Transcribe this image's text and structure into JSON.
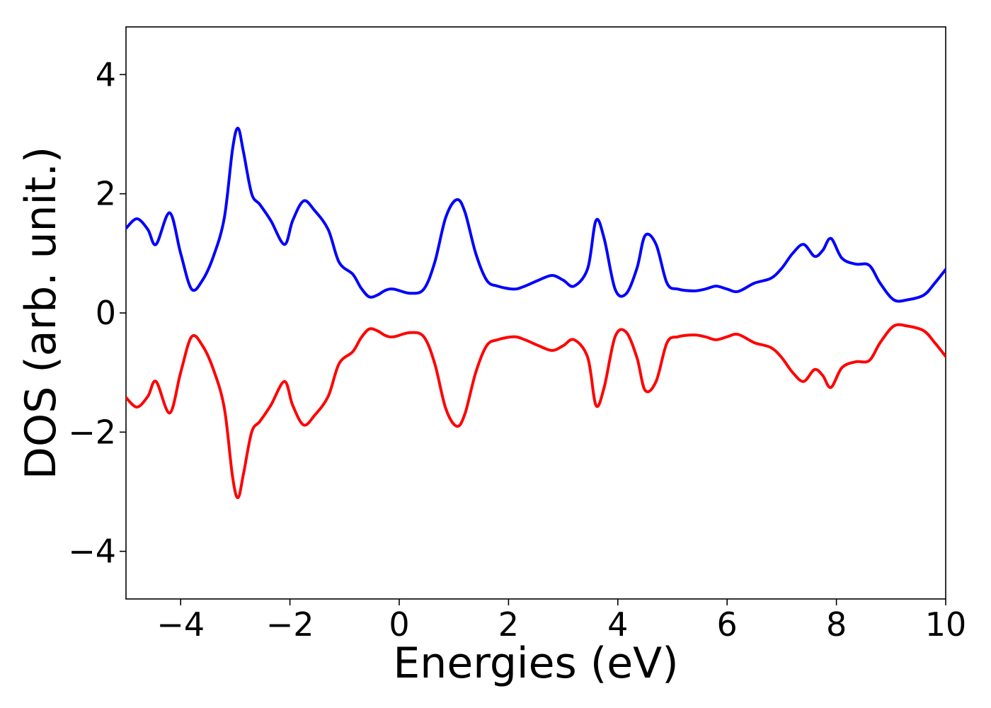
{
  "chart_data": {
    "type": "line",
    "title": "",
    "xlabel": "Energies (eV)",
    "ylabel": "DOS (arb. unit.)",
    "xlim": [
      -5,
      10
    ],
    "ylim": [
      -4.8,
      4.8
    ],
    "grid": false,
    "legend": "none",
    "x_ticks": [
      -4,
      -2,
      0,
      2,
      4,
      6,
      8,
      10
    ],
    "x_tick_labels": [
      "−4",
      "−2",
      "0",
      "2",
      "4",
      "6",
      "8",
      "10"
    ],
    "y_ticks": [
      -4,
      -2,
      0,
      2,
      4
    ],
    "y_tick_labels": [
      "−4",
      "−2",
      "0",
      "2",
      "4"
    ],
    "series": [
      {
        "color": "#0000ff",
        "x": [
          -5.0,
          -4.8,
          -4.6,
          -4.45,
          -4.2,
          -4.0,
          -3.8,
          -3.6,
          -3.4,
          -3.2,
          -3.05,
          -2.95,
          -2.85,
          -2.7,
          -2.55,
          -2.35,
          -2.1,
          -1.95,
          -1.75,
          -1.55,
          -1.3,
          -1.1,
          -0.85,
          -0.7,
          -0.55,
          -0.4,
          -0.25,
          -0.1,
          0.2,
          0.45,
          0.65,
          0.85,
          1.05,
          1.2,
          1.4,
          1.6,
          1.8,
          2.1,
          2.3,
          2.55,
          2.8,
          3.0,
          3.2,
          3.45,
          3.6,
          3.75,
          3.95,
          4.15,
          4.35,
          4.5,
          4.7,
          4.9,
          5.1,
          5.4,
          5.6,
          5.8,
          6.0,
          6.2,
          6.5,
          6.8,
          7.0,
          7.2,
          7.4,
          7.6,
          7.75,
          7.9,
          8.1,
          8.35,
          8.6,
          8.8,
          9.05,
          9.3,
          9.6,
          9.8,
          10.0
        ],
        "y": [
          1.42,
          1.58,
          1.4,
          1.15,
          1.68,
          1.0,
          0.4,
          0.55,
          0.95,
          1.6,
          2.75,
          3.1,
          2.7,
          2.0,
          1.82,
          1.55,
          1.15,
          1.55,
          1.88,
          1.72,
          1.4,
          0.85,
          0.65,
          0.42,
          0.27,
          0.3,
          0.38,
          0.4,
          0.33,
          0.4,
          0.85,
          1.6,
          1.9,
          1.7,
          1.0,
          0.55,
          0.45,
          0.4,
          0.45,
          0.55,
          0.63,
          0.55,
          0.45,
          0.75,
          1.55,
          1.25,
          0.4,
          0.32,
          0.75,
          1.3,
          1.15,
          0.5,
          0.4,
          0.37,
          0.4,
          0.45,
          0.4,
          0.36,
          0.5,
          0.58,
          0.75,
          1.0,
          1.15,
          0.95,
          1.05,
          1.25,
          0.92,
          0.82,
          0.8,
          0.5,
          0.22,
          0.22,
          0.3,
          0.5,
          0.73
        ]
      },
      {
        "color": "#ff0000",
        "x": [
          -5.0,
          -4.8,
          -4.6,
          -4.45,
          -4.2,
          -4.0,
          -3.8,
          -3.6,
          -3.4,
          -3.2,
          -3.05,
          -2.95,
          -2.85,
          -2.7,
          -2.55,
          -2.35,
          -2.1,
          -1.95,
          -1.75,
          -1.55,
          -1.3,
          -1.1,
          -0.85,
          -0.7,
          -0.55,
          -0.4,
          -0.25,
          -0.1,
          0.2,
          0.45,
          0.65,
          0.85,
          1.05,
          1.2,
          1.4,
          1.6,
          1.8,
          2.1,
          2.3,
          2.55,
          2.8,
          3.0,
          3.2,
          3.45,
          3.6,
          3.75,
          3.95,
          4.15,
          4.35,
          4.5,
          4.7,
          4.9,
          5.1,
          5.4,
          5.6,
          5.8,
          6.0,
          6.2,
          6.5,
          6.8,
          7.0,
          7.2,
          7.4,
          7.6,
          7.75,
          7.9,
          8.1,
          8.35,
          8.6,
          8.8,
          9.05,
          9.3,
          9.6,
          9.8,
          10.0
        ],
        "y": [
          -1.42,
          -1.58,
          -1.4,
          -1.15,
          -1.68,
          -1.0,
          -0.4,
          -0.55,
          -0.95,
          -1.6,
          -2.75,
          -3.1,
          -2.7,
          -2.0,
          -1.82,
          -1.55,
          -1.15,
          -1.55,
          -1.88,
          -1.72,
          -1.4,
          -0.85,
          -0.65,
          -0.42,
          -0.27,
          -0.3,
          -0.38,
          -0.4,
          -0.33,
          -0.4,
          -0.85,
          -1.6,
          -1.9,
          -1.7,
          -1.0,
          -0.55,
          -0.45,
          -0.4,
          -0.45,
          -0.55,
          -0.63,
          -0.55,
          -0.45,
          -0.75,
          -1.55,
          -1.25,
          -0.4,
          -0.32,
          -0.75,
          -1.3,
          -1.15,
          -0.5,
          -0.4,
          -0.37,
          -0.4,
          -0.45,
          -0.4,
          -0.36,
          -0.5,
          -0.58,
          -0.75,
          -1.0,
          -1.15,
          -0.95,
          -1.05,
          -1.25,
          -0.92,
          -0.82,
          -0.8,
          -0.5,
          -0.22,
          -0.22,
          -0.3,
          -0.5,
          -0.73
        ]
      }
    ]
  }
}
